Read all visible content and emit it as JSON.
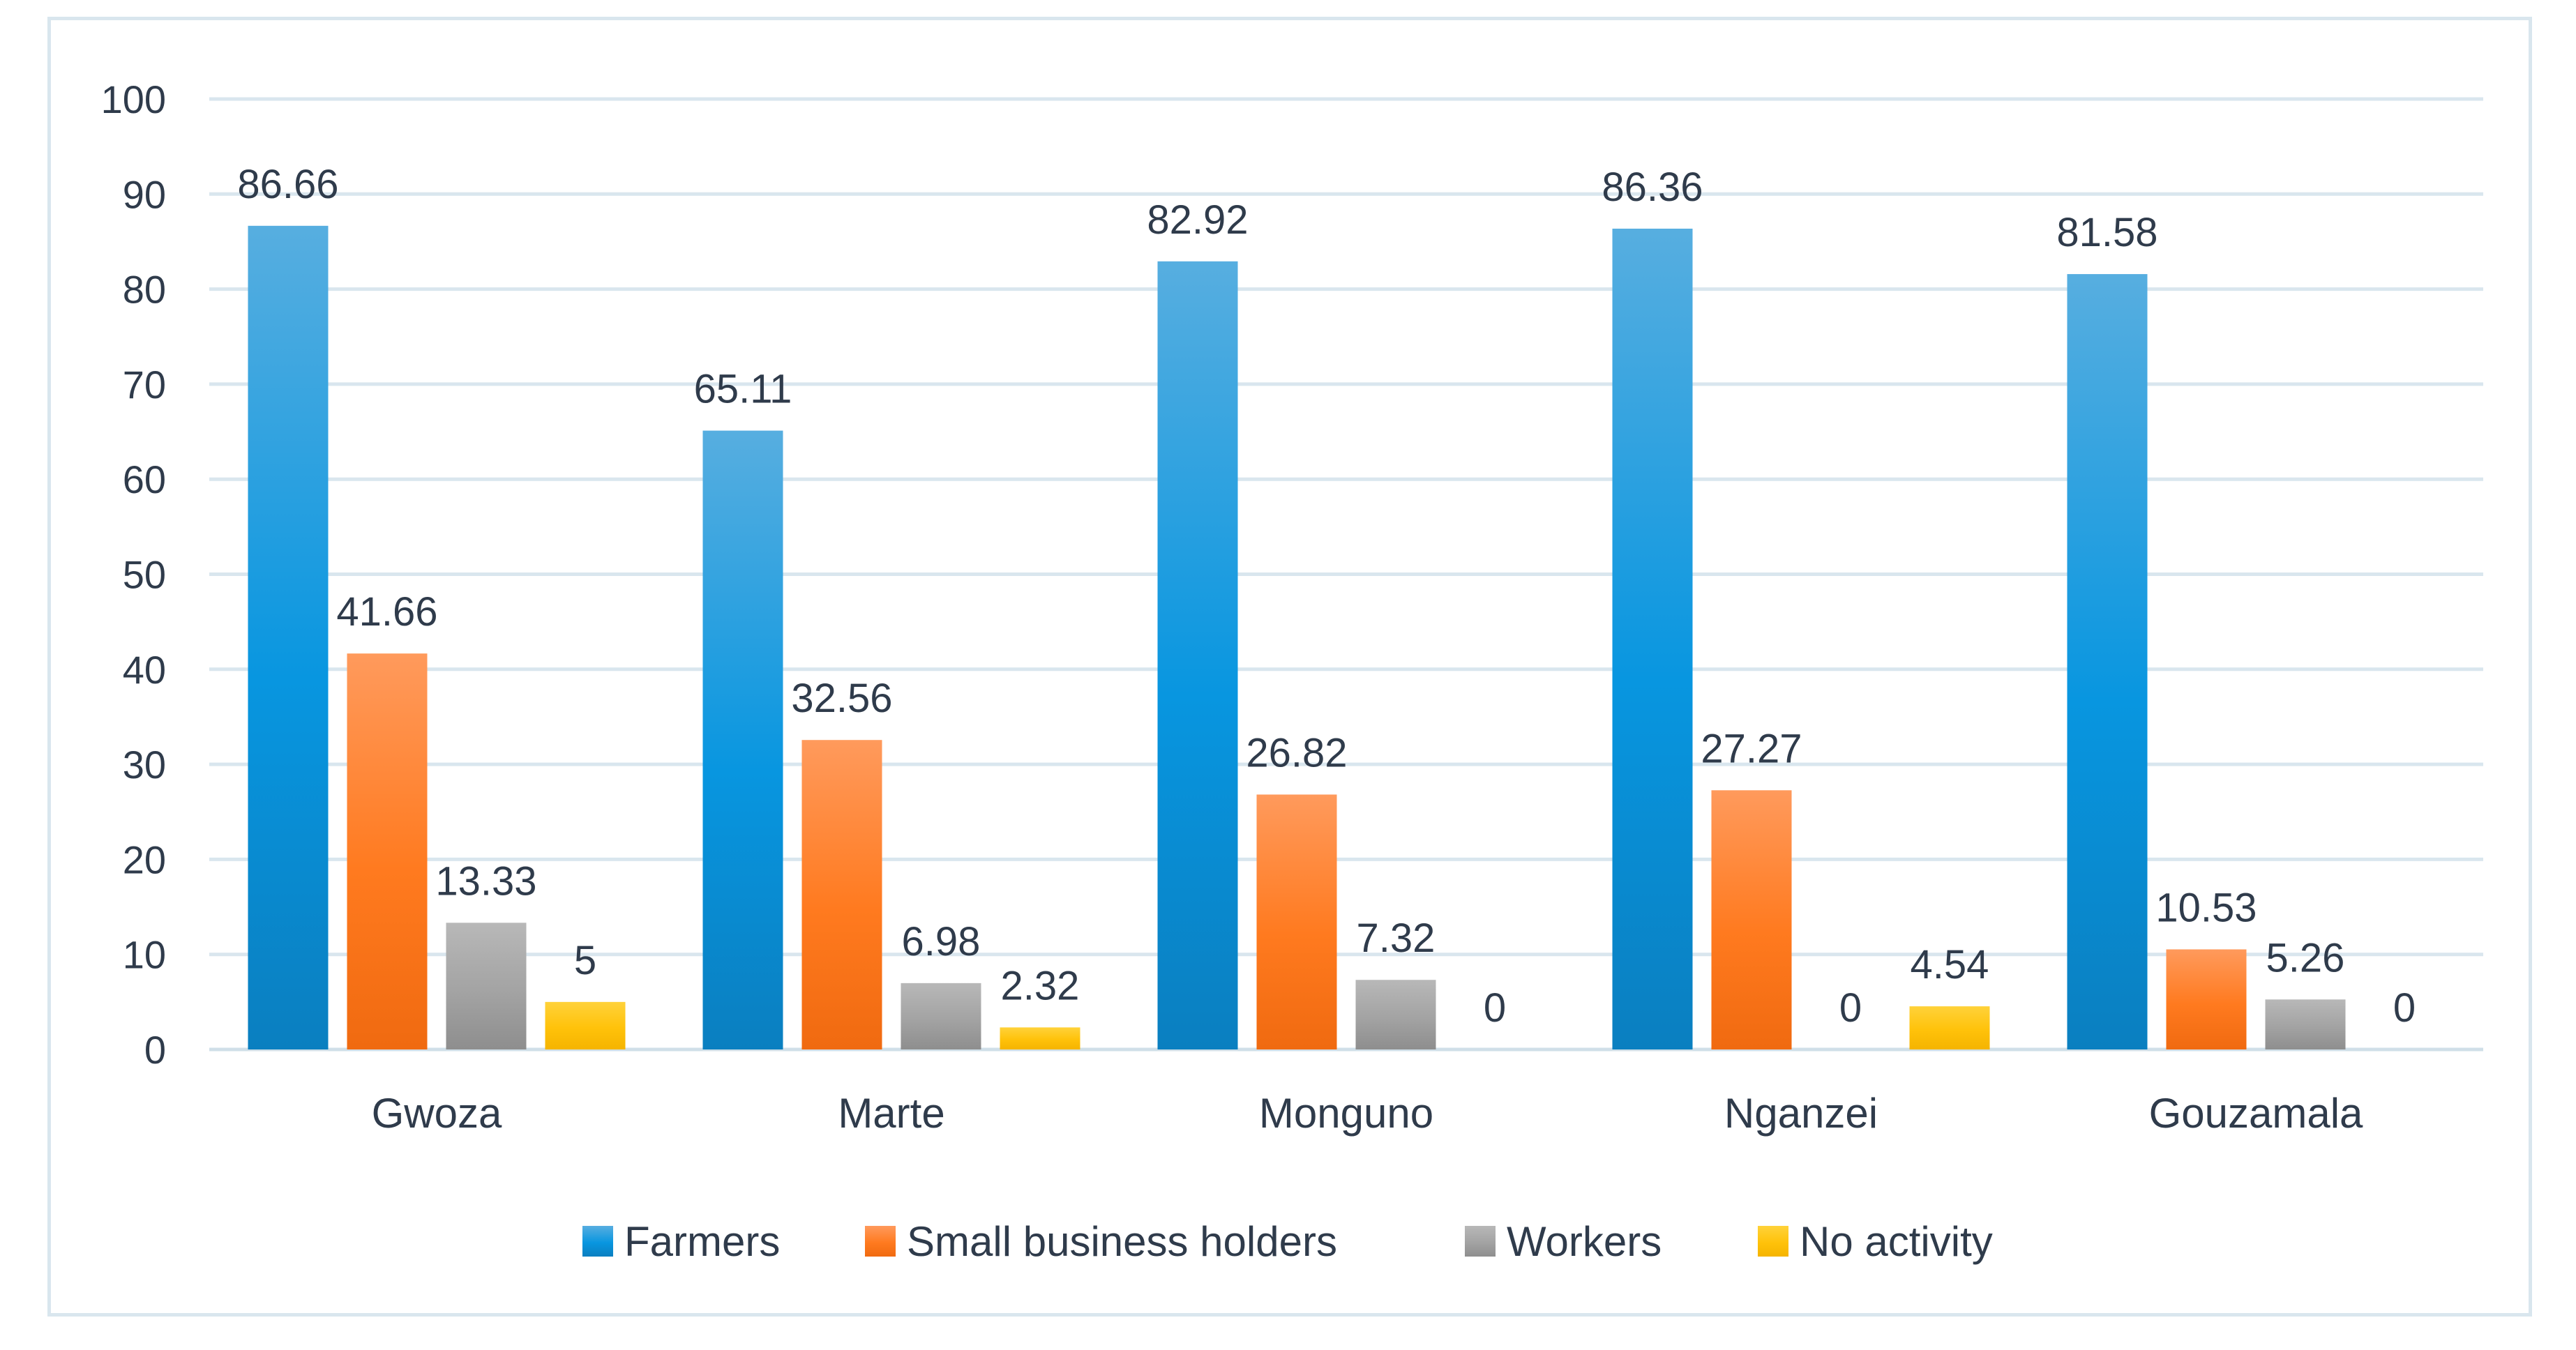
{
  "chart_data": {
    "type": "bar",
    "title": "",
    "xlabel": "",
    "ylabel": "",
    "ylim": [
      0,
      100
    ],
    "yticks": [
      0,
      10,
      20,
      30,
      40,
      50,
      60,
      70,
      80,
      90,
      100
    ],
    "grid": true,
    "legend_position": "bottom",
    "categories": [
      "Gwoza",
      "Marte",
      "Monguno",
      "Nganzei",
      "Gouzamala"
    ],
    "series": [
      {
        "name": "Farmers",
        "values": [
          86.66,
          65.11,
          82.92,
          86.36,
          81.58
        ],
        "labels": [
          "86.66",
          "65.11",
          "82.92",
          "86.36",
          "81.58"
        ],
        "color_top": "#57aee0",
        "color_mid": "#0896e0",
        "color_bottom": "#0a7fc0"
      },
      {
        "name": "Small business holders",
        "values": [
          41.66,
          32.56,
          26.82,
          27.27,
          10.53
        ],
        "labels": [
          "41.66",
          "32.56",
          "26.82",
          "27.27",
          "10.53"
        ],
        "color_top": "#ff9a5c",
        "color_mid": "#ff7a1f",
        "color_bottom": "#f06a10"
      },
      {
        "name": "Workers",
        "values": [
          13.33,
          6.98,
          7.32,
          0,
          5.26
        ],
        "labels": [
          "13.33",
          "6.98",
          "7.32",
          "0",
          "5.26"
        ],
        "color_top": "#b8b8b8",
        "color_mid": "#a3a3a3",
        "color_bottom": "#8e8e8e"
      },
      {
        "name": "No activity",
        "values": [
          5,
          2.32,
          0,
          4.54,
          0
        ],
        "labels": [
          "5",
          "2.32",
          "0",
          "4.54",
          "0"
        ],
        "color_top": "#ffd23a",
        "color_mid": "#ffc20a",
        "color_bottom": "#f5b400"
      }
    ]
  }
}
